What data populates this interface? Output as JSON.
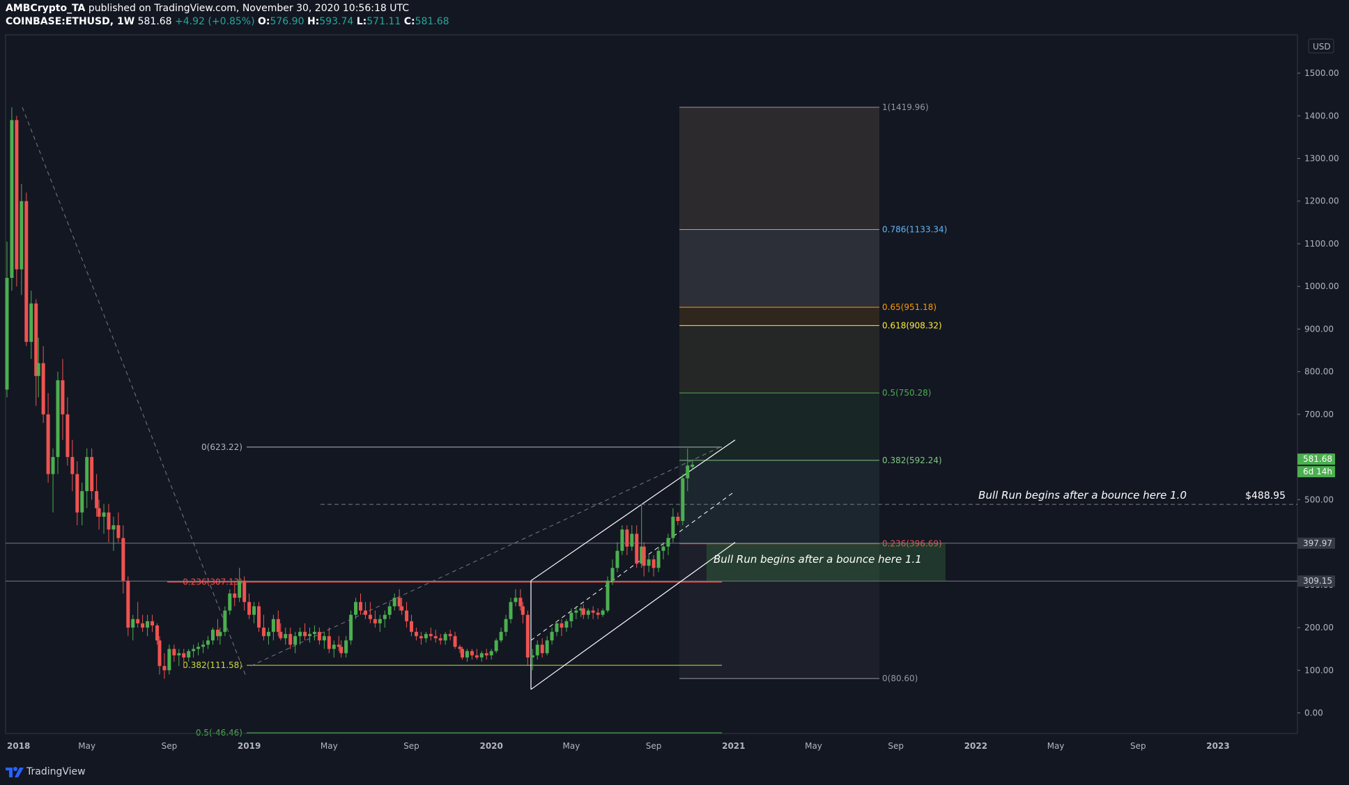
{
  "header": {
    "publisher": "AMBCrypto_TA",
    "published_text": "published on TradingView.com, November 30, 2020 10:56:18 UTC",
    "symbol": "COINBASE:ETHUSD, 1W",
    "last": "581.68",
    "change": "+4.92 (+0.85%)",
    "o_label": "O:",
    "o": "576.90",
    "h_label": "H:",
    "h": "593.74",
    "l_label": "L:",
    "l": "571.11",
    "c_label": "C:",
    "c": "581.68"
  },
  "footer": {
    "brand": "TradingView"
  },
  "colors": {
    "background": "#131722",
    "up": "#4caf50",
    "down": "#ef5350",
    "axis_text": "#b2b5be",
    "current_price": "#4caf50"
  },
  "chart_data": {
    "type": "candlestick",
    "symbol": "COINBASE:ETHUSD",
    "interval": "1W",
    "currency": "USD",
    "x_ticks": [
      "2018",
      "May",
      "Sep",
      "2019",
      "May",
      "Sep",
      "2020",
      "May",
      "Sep",
      "2021",
      "May",
      "Sep",
      "2022",
      "May",
      "Sep",
      "2023"
    ],
    "y_ticks": [
      "0.00",
      "100.00",
      "200.00",
      "300.00",
      "400.00",
      "500.00",
      "600.00",
      "700.00",
      "800.00",
      "900.00",
      "1000.00",
      "1100.00",
      "1200.00",
      "1300.00",
      "1400.00",
      "1500.00"
    ],
    "ylim": [
      -50,
      1570
    ],
    "last_price": "581.68",
    "countdown": "6d 14h",
    "price_labels": [
      "397.97",
      "309.15"
    ],
    "fib_left": [
      {
        "label": "0(623.22)",
        "price": 623.22,
        "color": "#b2b5be"
      },
      {
        "label": "0.236(307.13)",
        "price": 307.13,
        "color": "#ef5350"
      },
      {
        "label": "0.382(111.58)",
        "price": 111.58,
        "color": "#cddc39"
      },
      {
        "label": "0.5(-46.46)",
        "price": -46.46,
        "color": "#4caf50"
      }
    ],
    "fib_right": [
      {
        "label": "1(1419.96)",
        "price": 1419.96,
        "color": "#9598a1"
      },
      {
        "label": "0.786(1133.34)",
        "price": 1133.34,
        "color": "#64b5f6"
      },
      {
        "label": "0.65(951.18)",
        "price": 951.18,
        "color": "#ff9800"
      },
      {
        "label": "0.618(908.32)",
        "price": 908.32,
        "color": "#ffeb3b"
      },
      {
        "label": "0.5(750.28)",
        "price": 750.28,
        "color": "#4caf50"
      },
      {
        "label": "0.382(592.24)",
        "price": 592.24,
        "color": "#81c784"
      },
      {
        "label": "0.236(396.69)",
        "price": 396.69,
        "color": "#ef5350"
      },
      {
        "label": "0(80.60)",
        "price": 80.6,
        "color": "#9598a1"
      }
    ],
    "annotations": [
      {
        "text": "Bull Run begins after a bounce here 1.0",
        "price_text": "$488.95",
        "price": 488.95
      },
      {
        "text": "Bull Run begins after a bounce here 1.1"
      }
    ],
    "candles": [
      [
        2018.0,
        758,
        1105,
        740,
        1020
      ],
      [
        2018.02,
        1020,
        1420,
        990,
        1390
      ],
      [
        2018.04,
        1390,
        1400,
        1000,
        1040
      ],
      [
        2018.06,
        1040,
        1240,
        980,
        1200
      ],
      [
        2018.08,
        1200,
        1220,
        860,
        870
      ],
      [
        2018.1,
        870,
        990,
        830,
        960
      ],
      [
        2018.12,
        960,
        970,
        720,
        790
      ],
      [
        2018.13,
        790,
        880,
        740,
        820
      ],
      [
        2018.15,
        820,
        860,
        680,
        700
      ],
      [
        2018.17,
        700,
        750,
        540,
        560
      ],
      [
        2018.19,
        560,
        620,
        470,
        600
      ],
      [
        2018.21,
        600,
        800,
        560,
        780
      ],
      [
        2018.23,
        780,
        830,
        640,
        700
      ],
      [
        2018.25,
        700,
        740,
        580,
        600
      ],
      [
        2018.27,
        600,
        640,
        520,
        560
      ],
      [
        2018.29,
        560,
        590,
        440,
        470
      ],
      [
        2018.31,
        470,
        540,
        440,
        520
      ],
      [
        2018.33,
        520,
        620,
        480,
        600
      ],
      [
        2018.35,
        600,
        620,
        500,
        520
      ],
      [
        2018.37,
        520,
        560,
        460,
        480
      ],
      [
        2018.38,
        480,
        500,
        430,
        460
      ],
      [
        2018.4,
        460,
        490,
        420,
        470
      ],
      [
        2018.42,
        470,
        490,
        400,
        430
      ],
      [
        2018.44,
        430,
        460,
        380,
        440
      ],
      [
        2018.46,
        440,
        470,
        400,
        410
      ],
      [
        2018.48,
        410,
        440,
        280,
        310
      ],
      [
        2018.5,
        310,
        320,
        180,
        200
      ],
      [
        2018.52,
        200,
        230,
        170,
        220
      ],
      [
        2018.54,
        220,
        260,
        200,
        210
      ],
      [
        2018.56,
        210,
        230,
        190,
        200
      ],
      [
        2018.58,
        200,
        230,
        180,
        215
      ],
      [
        2018.6,
        215,
        230,
        190,
        205
      ],
      [
        2018.62,
        205,
        210,
        160,
        170
      ],
      [
        2018.63,
        170,
        180,
        90,
        110
      ],
      [
        2018.65,
        110,
        140,
        80,
        100
      ],
      [
        2018.67,
        100,
        160,
        90,
        150
      ],
      [
        2018.69,
        150,
        160,
        120,
        135
      ],
      [
        2018.71,
        135,
        150,
        110,
        140
      ],
      [
        2018.73,
        140,
        150,
        105,
        130
      ],
      [
        2018.75,
        130,
        150,
        120,
        145
      ],
      [
        2018.77,
        145,
        160,
        130,
        150
      ],
      [
        2018.79,
        150,
        165,
        135,
        155
      ],
      [
        2018.81,
        155,
        170,
        140,
        160
      ],
      [
        2018.83,
        160,
        180,
        150,
        170
      ],
      [
        2018.85,
        170,
        200,
        160,
        195
      ],
      [
        2018.87,
        195,
        220,
        170,
        180
      ],
      [
        2018.88,
        180,
        200,
        160,
        190
      ],
      [
        2018.9,
        190,
        250,
        180,
        240
      ],
      [
        2018.92,
        240,
        290,
        230,
        280
      ],
      [
        2018.94,
        280,
        310,
        250,
        270
      ],
      [
        2018.96,
        270,
        340,
        260,
        310
      ],
      [
        2018.98,
        310,
        320,
        240,
        260
      ],
      [
        2019.0,
        260,
        280,
        220,
        230
      ],
      [
        2019.02,
        230,
        260,
        210,
        250
      ],
      [
        2019.04,
        250,
        260,
        190,
        200
      ],
      [
        2019.06,
        200,
        230,
        170,
        180
      ],
      [
        2019.08,
        180,
        200,
        160,
        190
      ],
      [
        2019.1,
        190,
        230,
        170,
        220
      ],
      [
        2019.12,
        220,
        240,
        180,
        190
      ],
      [
        2019.13,
        190,
        210,
        170,
        175
      ],
      [
        2019.15,
        175,
        200,
        160,
        185
      ],
      [
        2019.17,
        185,
        200,
        150,
        160
      ],
      [
        2019.19,
        160,
        190,
        140,
        180
      ],
      [
        2019.21,
        180,
        200,
        160,
        190
      ],
      [
        2019.23,
        190,
        210,
        170,
        180
      ],
      [
        2019.25,
        180,
        200,
        165,
        185
      ],
      [
        2019.27,
        185,
        205,
        170,
        190
      ],
      [
        2019.29,
        190,
        200,
        160,
        170
      ],
      [
        2019.31,
        170,
        190,
        150,
        180
      ],
      [
        2019.33,
        180,
        200,
        140,
        150
      ],
      [
        2019.35,
        150,
        170,
        130,
        160
      ],
      [
        2019.37,
        160,
        180,
        145,
        155
      ],
      [
        2019.38,
        155,
        170,
        130,
        140
      ],
      [
        2019.4,
        140,
        180,
        130,
        170
      ],
      [
        2019.42,
        170,
        240,
        160,
        230
      ],
      [
        2019.44,
        230,
        270,
        220,
        260
      ],
      [
        2019.46,
        260,
        280,
        230,
        240
      ],
      [
        2019.48,
        240,
        260,
        220,
        230
      ],
      [
        2019.5,
        230,
        260,
        210,
        220
      ],
      [
        2019.52,
        220,
        240,
        200,
        210
      ],
      [
        2019.54,
        210,
        230,
        190,
        220
      ],
      [
        2019.56,
        220,
        240,
        200,
        230
      ],
      [
        2019.58,
        230,
        260,
        220,
        250
      ],
      [
        2019.6,
        250,
        280,
        240,
        270
      ],
      [
        2019.62,
        270,
        290,
        240,
        250
      ],
      [
        2019.63,
        250,
        270,
        230,
        240
      ],
      [
        2019.65,
        240,
        260,
        200,
        215
      ]
    ]
  }
}
